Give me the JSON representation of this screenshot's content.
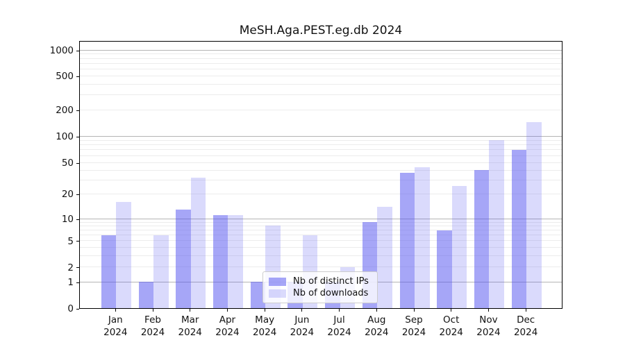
{
  "title": "MeSH.Aga.PEST.eg.db 2024",
  "chart_data": {
    "type": "bar",
    "title": "MeSH.Aga.PEST.eg.db 2024",
    "categories": [
      "Jan",
      "Feb",
      "Mar",
      "Apr",
      "May",
      "Jun",
      "Jul",
      "Aug",
      "Sep",
      "Oct",
      "Nov",
      "Dec"
    ],
    "category_year": "2024",
    "series": [
      {
        "name": "Nb of distinct IPs",
        "color": "rgba(85,85,240,0.52)",
        "values": [
          6,
          1,
          13,
          11,
          1,
          1,
          1,
          9,
          37,
          7,
          40,
          70
        ]
      },
      {
        "name": "Nb of downloads",
        "color": "rgba(85,85,240,0.22)",
        "values": [
          16,
          6,
          32,
          11,
          8,
          6,
          2,
          14,
          44,
          25,
          90,
          145
        ]
      }
    ],
    "yticks": [
      0,
      1,
      2,
      5,
      10,
      20,
      50,
      100,
      200,
      500,
      1000
    ],
    "yscale": "symlog",
    "xlabel": "",
    "ylabel": "",
    "grid": "horizontal; darker gridlines at 1, 10, 100, 1000; light minor log subdivisions",
    "legend_position": "inside bottom, overlapping Jun-Jul bars",
    "colors": {
      "bar_distinct_ips": "rgba(85,85,240,0.52)",
      "bar_downloads": "rgba(85,85,240,0.22)",
      "major_grid": "#b4b4b4",
      "minor_grid": "#ececec",
      "spine": "#000000",
      "text": "#111111",
      "legend_border": "#cccccc",
      "legend_bg": "rgba(255,255,255,0.8)"
    }
  }
}
